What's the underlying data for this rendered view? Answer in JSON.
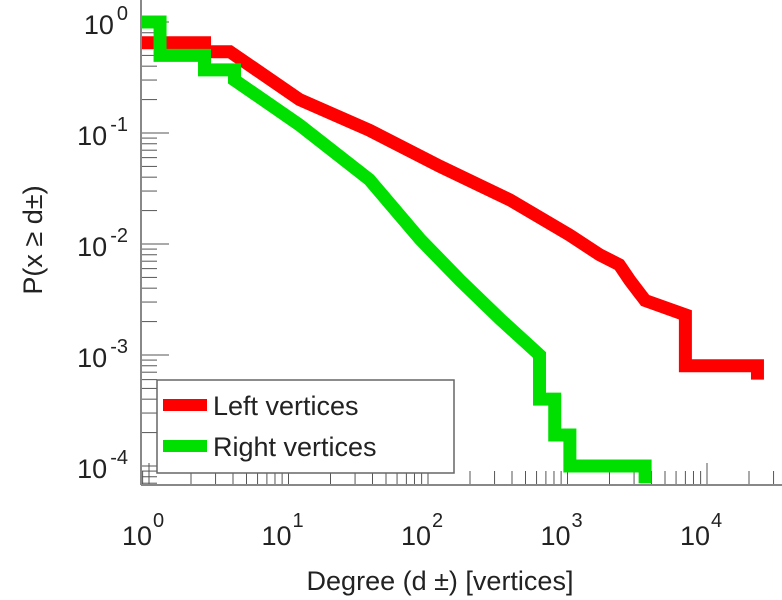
{
  "chart_data": {
    "type": "line",
    "title": "",
    "xlabel": "Degree (d ±) [vertices]",
    "ylabel": "P(x ≥ d±)",
    "xscale": "log",
    "yscale": "log",
    "xlim": [
      0.88,
      33000
    ],
    "ylim": [
      7e-05,
      1.6
    ],
    "x_ticks": [
      {
        "base": "10",
        "exp": "0",
        "value": 1
      },
      {
        "base": "10",
        "exp": "1",
        "value": 10
      },
      {
        "base": "10",
        "exp": "2",
        "value": 100
      },
      {
        "base": "10",
        "exp": "3",
        "value": 1000
      },
      {
        "base": "10",
        "exp": "4",
        "value": 10000
      }
    ],
    "y_ticks": [
      {
        "base": "10",
        "exp": "0",
        "value": 1
      },
      {
        "base": "10",
        "exp": "-1",
        "value": 0.1
      },
      {
        "base": "10",
        "exp": "-2",
        "value": 0.01
      },
      {
        "base": "10",
        "exp": "-3",
        "value": 0.001
      },
      {
        "base": "10",
        "exp": "-4",
        "value": 0.0001
      }
    ],
    "legend_position": "bottom-left",
    "series": [
      {
        "name": "Left vertices",
        "color": "#ff0000",
        "points": [
          [
            0.88,
            0.65
          ],
          [
            2.5,
            0.65
          ],
          [
            2.5,
            0.54
          ],
          [
            3.8,
            0.54
          ],
          [
            12,
            0.2
          ],
          [
            38,
            0.106
          ],
          [
            122,
            0.05
          ],
          [
            386,
            0.025
          ],
          [
            1040,
            0.012
          ],
          [
            1700,
            0.008
          ],
          [
            2350,
            0.0065
          ],
          [
            2800,
            0.0047
          ],
          [
            3600,
            0.0031
          ],
          [
            7000,
            0.0023
          ],
          [
            7000,
            0.0008
          ],
          [
            23000,
            0.0008
          ],
          [
            23000,
            0.0006
          ]
        ]
      },
      {
        "name": "Right vertices",
        "color": "#00e000",
        "points": [
          [
            0.88,
            1
          ],
          [
            1.2,
            1
          ],
          [
            1.2,
            0.5
          ],
          [
            2.5,
            0.5
          ],
          [
            2.5,
            0.37
          ],
          [
            4.1,
            0.37
          ],
          [
            4.1,
            0.3
          ],
          [
            12,
            0.118
          ],
          [
            38,
            0.038
          ],
          [
            88,
            0.011
          ],
          [
            170,
            0.0047
          ],
          [
            330,
            0.0021
          ],
          [
            630,
            0.001
          ],
          [
            630,
            0.0004
          ],
          [
            810,
            0.0004
          ],
          [
            810,
            0.00019
          ],
          [
            1040,
            0.00019
          ],
          [
            1040,
            0.0001
          ],
          [
            3600,
            0.0001
          ],
          [
            3600,
            7e-05
          ]
        ]
      }
    ]
  }
}
